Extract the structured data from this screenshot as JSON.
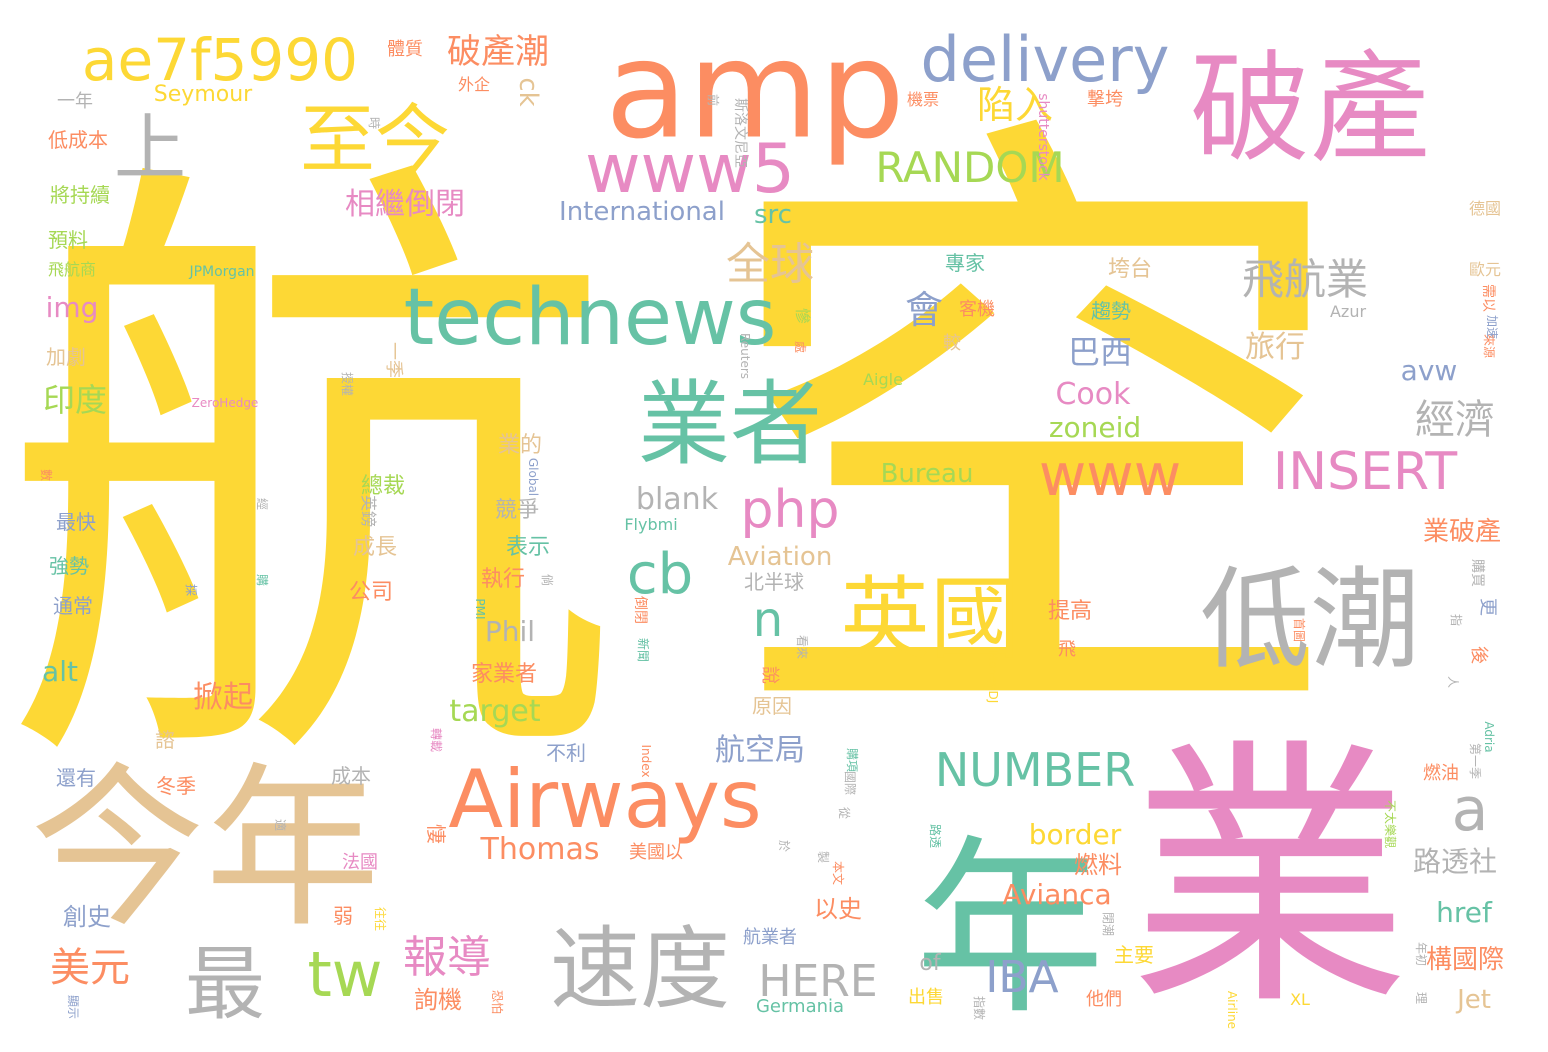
{
  "palette": {
    "yellow": "#fdd835",
    "orange": "#fc8d62",
    "pink": "#e78ac3",
    "gray": "#b3b3b3",
    "tan": "#e5c494",
    "teal": "#66c2a5",
    "blue": "#8da0cb",
    "green": "#a6d854"
  },
  "words": [
    {
      "text": "航",
      "color": "yellow"
    },
    {
      "text": "空",
      "color": "yellow"
    },
    {
      "text": "業",
      "color": "pink"
    },
    {
      "text": "年",
      "color": "teal"
    },
    {
      "text": "今年",
      "color": "tan"
    },
    {
      "text": "amp",
      "color": "orange"
    },
    {
      "text": "破產",
      "color": "pink"
    },
    {
      "text": "低潮",
      "color": "gray"
    },
    {
      "text": "Airways",
      "color": "orange"
    },
    {
      "text": "業者",
      "color": "teal"
    },
    {
      "text": "英國",
      "color": "yellow"
    },
    {
      "text": "速度",
      "color": "gray"
    },
    {
      "text": "最",
      "color": "gray"
    },
    {
      "text": "technews",
      "color": "teal"
    },
    {
      "text": "www5",
      "color": "pink"
    },
    {
      "text": "ae7f5990",
      "color": "yellow"
    },
    {
      "text": "delivery",
      "color": "blue"
    },
    {
      "text": "至今",
      "color": "yellow"
    },
    {
      "text": "上",
      "color": "gray"
    },
    {
      "text": "www",
      "color": "orange"
    },
    {
      "text": "INSERT",
      "color": "pink"
    },
    {
      "text": "php",
      "color": "pink"
    },
    {
      "text": "tw",
      "color": "green"
    },
    {
      "text": "cb",
      "color": "teal"
    },
    {
      "text": "a",
      "color": "gray"
    },
    {
      "text": "NUMBER",
      "color": "teal"
    },
    {
      "text": "RANDOM",
      "color": "green"
    },
    {
      "text": "飛航業",
      "color": "gray"
    },
    {
      "text": "經濟",
      "color": "gray"
    },
    {
      "text": "全球",
      "color": "tan"
    },
    {
      "text": "HERE",
      "color": "gray"
    },
    {
      "text": "IBA",
      "color": "blue"
    },
    {
      "text": "報導",
      "color": "pink"
    },
    {
      "text": "美元",
      "color": "orange"
    },
    {
      "text": "陷入",
      "color": "yellow"
    },
    {
      "text": "破產潮",
      "color": "orange"
    },
    {
      "text": "n",
      "color": "teal"
    },
    {
      "text": "Thomas",
      "color": "orange"
    },
    {
      "text": "Avianca",
      "color": "orange"
    },
    {
      "text": "Cook",
      "color": "pink"
    },
    {
      "text": "巴西",
      "color": "blue"
    },
    {
      "text": "旅行",
      "color": "tan"
    },
    {
      "text": "相繼倒閉",
      "color": "pink"
    },
    {
      "text": "International",
      "color": "blue"
    },
    {
      "text": "border",
      "color": "yellow"
    },
    {
      "text": "會",
      "color": "blue"
    },
    {
      "text": "航空局",
      "color": "blue"
    },
    {
      "text": "掀起",
      "color": "orange"
    },
    {
      "text": "印度",
      "color": "green"
    },
    {
      "text": "zoneid",
      "color": "green"
    },
    {
      "text": "blank",
      "color": "gray"
    },
    {
      "text": "target",
      "color": "green"
    },
    {
      "text": "Aviation",
      "color": "tan"
    },
    {
      "text": "路透社",
      "color": "gray"
    },
    {
      "text": "構國際",
      "color": "orange"
    },
    {
      "text": "href",
      "color": "teal"
    },
    {
      "text": "Jet",
      "color": "tan"
    },
    {
      "text": "ck",
      "color": "tan"
    },
    {
      "text": "img",
      "color": "pink"
    },
    {
      "text": "alt",
      "color": "teal"
    },
    {
      "text": "Bureau",
      "color": "green"
    },
    {
      "text": "avw",
      "color": "blue"
    },
    {
      "text": "Phil",
      "color": "gray"
    },
    {
      "text": "src",
      "color": "teal"
    },
    {
      "text": "Seymour",
      "color": "yellow"
    },
    {
      "text": "of",
      "color": "gray"
    },
    {
      "text": "業破產",
      "color": "orange"
    },
    {
      "text": "燃料",
      "color": "orange"
    },
    {
      "text": "以史",
      "color": "orange"
    },
    {
      "text": "詢機",
      "color": "orange"
    },
    {
      "text": "創史",
      "color": "blue"
    },
    {
      "text": "體質",
      "color": "orange"
    },
    {
      "text": "一年",
      "color": "gray"
    },
    {
      "text": "外企",
      "color": "orange"
    },
    {
      "text": "撃垮",
      "color": "orange"
    },
    {
      "text": "機票",
      "color": "orange"
    },
    {
      "text": "斯洛文尼亞",
      "color": "gray"
    },
    {
      "text": "shutterstock",
      "color": "pink"
    },
    {
      "text": "前",
      "color": "gray"
    },
    {
      "text": "時",
      "color": "gray"
    },
    {
      "text": "低成本",
      "color": "orange"
    },
    {
      "text": "將持續",
      "color": "green"
    },
    {
      "text": "預料",
      "color": "green"
    },
    {
      "text": "飛航商",
      "color": "green"
    },
    {
      "text": "JPMorgan",
      "color": "teal"
    },
    {
      "text": "加劇",
      "color": "tan"
    },
    {
      "text": "專家",
      "color": "teal"
    },
    {
      "text": "客機",
      "color": "orange"
    },
    {
      "text": "垮台",
      "color": "tan"
    },
    {
      "text": "趨勢",
      "color": "teal"
    },
    {
      "text": "較",
      "color": "tan"
    },
    {
      "text": "慘",
      "color": "green"
    },
    {
      "text": "一季",
      "color": "tan"
    },
    {
      "text": "授權",
      "color": "gray"
    },
    {
      "text": "處",
      "color": "orange"
    },
    {
      "text": "Reuters",
      "color": "gray"
    },
    {
      "text": "Aigle",
      "color": "green"
    },
    {
      "text": "ZeroHedge",
      "color": "pink"
    },
    {
      "text": "Azur",
      "color": "gray"
    },
    {
      "text": "德國",
      "color": "tan"
    },
    {
      "text": "歐元",
      "color": "tan"
    },
    {
      "text": "需以",
      "color": "orange"
    },
    {
      "text": "加速",
      "color": "blue"
    },
    {
      "text": "來源",
      "color": "orange"
    },
    {
      "text": "業的",
      "color": "tan"
    },
    {
      "text": "總裁",
      "color": "green"
    },
    {
      "text": "競爭",
      "color": "gray"
    },
    {
      "text": "表示",
      "color": "teal"
    },
    {
      "text": "執行",
      "color": "orange"
    },
    {
      "text": "成長",
      "color": "tan"
    },
    {
      "text": "公司",
      "color": "orange"
    },
    {
      "text": "英鎊",
      "color": "gray"
    },
    {
      "text": "最快",
      "color": "blue"
    },
    {
      "text": "強勢",
      "color": "teal"
    },
    {
      "text": "通常",
      "color": "blue"
    },
    {
      "text": "數",
      "color": "orange"
    },
    {
      "text": "Global",
      "color": "blue"
    },
    {
      "text": "經",
      "color": "gray"
    },
    {
      "text": "Flybmi",
      "color": "teal"
    },
    {
      "text": "北半球",
      "color": "gray"
    },
    {
      "text": "倒閉",
      "color": "orange"
    },
    {
      "text": "購買",
      "color": "gray"
    },
    {
      "text": "更",
      "color": "blue"
    },
    {
      "text": "指",
      "color": "gray"
    },
    {
      "text": "提高",
      "color": "orange"
    },
    {
      "text": "飛",
      "color": "orange"
    },
    {
      "text": "說",
      "color": "orange"
    },
    {
      "text": "原因",
      "color": "tan"
    },
    {
      "text": "家業者",
      "color": "orange"
    },
    {
      "text": "後",
      "color": "orange"
    },
    {
      "text": "首圖",
      "color": "orange"
    },
    {
      "text": "看來",
      "color": "gray"
    },
    {
      "text": "新聞",
      "color": "teal"
    },
    {
      "text": "PMI",
      "color": "teal"
    },
    {
      "text": "MoneyDJ",
      "color": "yellow"
    },
    {
      "text": "人",
      "color": "gray"
    },
    {
      "text": "諮",
      "color": "tan"
    },
    {
      "text": "不利",
      "color": "blue"
    },
    {
      "text": "轉載",
      "color": "pink"
    },
    {
      "text": "Index",
      "color": "orange"
    },
    {
      "text": "購項",
      "color": "teal"
    },
    {
      "text": "國際",
      "color": "gray"
    },
    {
      "text": "Adria",
      "color": "teal"
    },
    {
      "text": "燃油",
      "color": "orange"
    },
    {
      "text": "第一季",
      "color": "gray"
    },
    {
      "text": "冬季",
      "color": "orange"
    },
    {
      "text": "成本",
      "color": "gray"
    },
    {
      "text": "還有",
      "color": "blue"
    },
    {
      "text": "悽",
      "color": "orange"
    },
    {
      "text": "美國以",
      "color": "orange"
    },
    {
      "text": "從",
      "color": "gray"
    },
    {
      "text": "路透",
      "color": "teal"
    },
    {
      "text": "不太樂觀",
      "color": "green"
    },
    {
      "text": "於",
      "color": "gray"
    },
    {
      "text": "製",
      "color": "gray"
    },
    {
      "text": "本文",
      "color": "orange"
    },
    {
      "text": "法國",
      "color": "pink"
    },
    {
      "text": "弱",
      "color": "orange"
    },
    {
      "text": "往往",
      "color": "yellow"
    },
    {
      "text": "航業者",
      "color": "blue"
    },
    {
      "text": "主要",
      "color": "yellow"
    },
    {
      "text": "閉潮",
      "color": "gray"
    },
    {
      "text": "年初",
      "color": "gray"
    },
    {
      "text": "出售",
      "color": "yellow"
    },
    {
      "text": "指數",
      "color": "gray"
    },
    {
      "text": "他們",
      "color": "orange"
    },
    {
      "text": "XL",
      "color": "yellow"
    },
    {
      "text": "Airline",
      "color": "yellow"
    },
    {
      "text": "理",
      "color": "gray"
    },
    {
      "text": "恐怕",
      "color": "orange"
    },
    {
      "text": "顯示",
      "color": "blue"
    },
    {
      "text": "Germania",
      "color": "teal"
    },
    {
      "text": "適",
      "color": "gray"
    },
    {
      "text": "採",
      "color": "blue"
    },
    {
      "text": "購",
      "color": "teal"
    },
    {
      "text": "倘",
      "color": "gray"
    }
  ]
}
